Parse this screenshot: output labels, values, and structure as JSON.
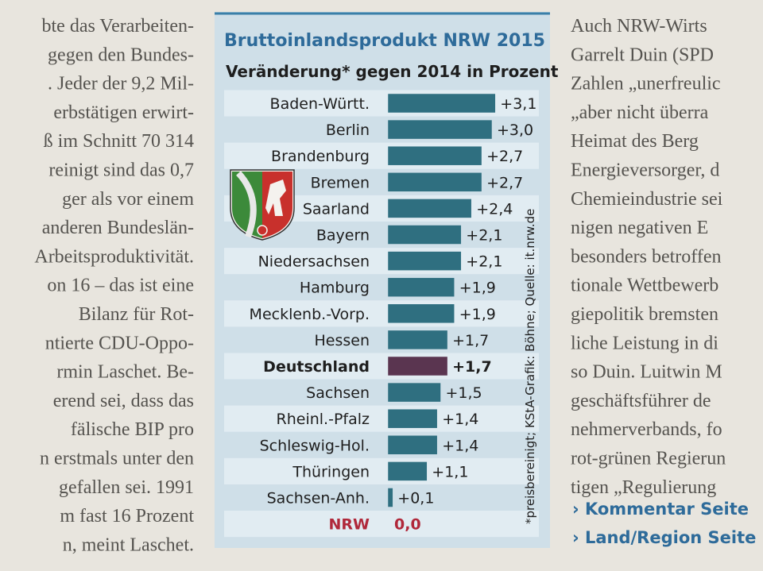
{
  "chart_data": {
    "type": "bar",
    "orientation": "horizontal",
    "title": "Bruttoinlandsprodukt NRW 2015",
    "subtitle": "Veränderung* gegen 2014 in Prozent",
    "source": "*preisbereinigt; KStA-Grafik: Böhne; Quelle: it.nrw.de",
    "categories": [
      "Baden-Württ.",
      "Berlin",
      "Brandenburg",
      "Bremen",
      "Saarland",
      "Bayern",
      "Niedersachsen",
      "Hamburg",
      "Mecklenb.-Vorp.",
      "Hessen",
      "Deutschland",
      "Sachsen",
      "Rheinl.-Pfalz",
      "Schleswig-Hol.",
      "Thüringen",
      "Sachsen-Anh.",
      "NRW"
    ],
    "values": [
      3.1,
      3.0,
      2.7,
      2.7,
      2.4,
      2.1,
      2.1,
      1.9,
      1.9,
      1.7,
      1.7,
      1.5,
      1.4,
      1.4,
      1.1,
      0.1,
      0.0
    ],
    "value_labels": [
      "+3,1",
      "+3,0",
      "+2,7",
      "+2,7",
      "+2,4",
      "+2,1",
      "+2,1",
      "+1,9",
      "+1,9",
      "+1,7",
      "+1,7",
      "+1,5",
      "+1,4",
      "+1,4",
      "+1,1",
      "+0,1",
      "0,0"
    ],
    "colors": [
      "#2f6f80",
      "#2f6f80",
      "#2f6f80",
      "#2f6f80",
      "#2f6f80",
      "#2f6f80",
      "#2f6f80",
      "#2f6f80",
      "#2f6f80",
      "#2f6f80",
      "#5a3550",
      "#2f6f80",
      "#2f6f80",
      "#2f6f80",
      "#2f6f80",
      "#2f6f80",
      "#2f6f80"
    ],
    "label_colors": [
      "#1e1e1e",
      "#1e1e1e",
      "#1e1e1e",
      "#1e1e1e",
      "#1e1e1e",
      "#1e1e1e",
      "#1e1e1e",
      "#1e1e1e",
      "#1e1e1e",
      "#1e1e1e",
      "#1e1e1e",
      "#1e1e1e",
      "#1e1e1e",
      "#1e1e1e",
      "#1e1e1e",
      "#1e1e1e",
      "#b0283a"
    ],
    "label_bold": [
      false,
      false,
      false,
      false,
      false,
      false,
      false,
      false,
      false,
      false,
      true,
      false,
      false,
      false,
      false,
      false,
      true
    ]
  },
  "article": {
    "left_column": [
      "bte das Verarbeiten-",
      "gegen den Bundes-",
      ". Jeder der 9,2 Mil-",
      "erbstätigen erwirt-",
      "ß im Schnitt 70 314",
      "reinigt sind das 0,7",
      "ger als vor einem",
      "anderen Bundeslän-",
      "Arbeitsproduktivität.",
      "on 16 – das ist eine",
      "Bilanz für Rot-",
      "ntierte CDU-Oppo-",
      "rmin Laschet. Be-",
      "erend sei, dass das",
      "fälische BIP pro",
      "n erstmals unter den",
      "gefallen sei. 1991",
      "m fast 16 Prozent",
      "n, meint Laschet."
    ],
    "right_column": [
      "Auch NRW-Wirts",
      "Garrelt Duin (SPD",
      "Zahlen „unerfreulic",
      "„aber nicht überra",
      "Heimat des Berg",
      "Energieversorger, d",
      "Chemieindustrie sei",
      "nigen negativen E",
      "besonders betroffen",
      "tionale Wettbewerb",
      "giepolitik bremsten",
      "liche Leistung in di",
      "so Duin. Luitwin M",
      "geschäftsführer de",
      "nehmerverbands, fo",
      "rot-grünen Regierun",
      "tigen „Regulierung"
    ],
    "links": [
      "› Kommentar Seite",
      "› Land/Region Seite"
    ]
  }
}
